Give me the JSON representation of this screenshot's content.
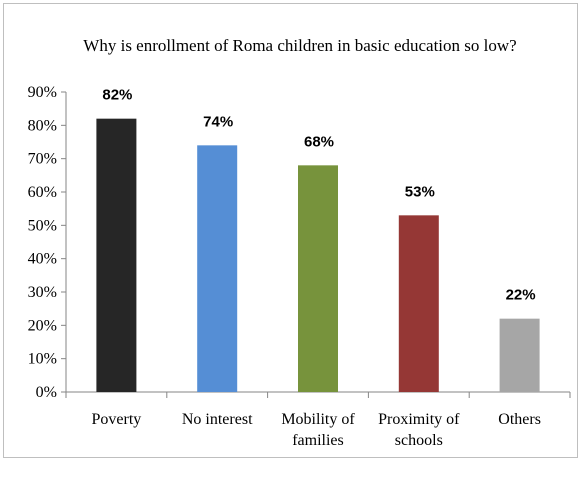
{
  "chart_data": {
    "type": "bar",
    "title": "Why is enrollment of Roma children in basic education so low?",
    "xlabel": "",
    "ylabel": "",
    "categories": [
      "Poverty",
      "No interest",
      "Mobility of families",
      "Proximity of schools",
      "Others"
    ],
    "category_lines": [
      [
        "Poverty"
      ],
      [
        "No interest"
      ],
      [
        "Mobility of",
        "families"
      ],
      [
        "Proximity of",
        "schools"
      ],
      [
        "Others"
      ]
    ],
    "values": [
      82,
      74,
      68,
      53,
      22
    ],
    "data_labels": [
      "82%",
      "74%",
      "68%",
      "53%",
      "22%"
    ],
    "colors": [
      "#262626",
      "#558ed5",
      "#77933c",
      "#953735",
      "#a6a6a6"
    ],
    "ylim": [
      0,
      90
    ],
    "yticks": [
      0,
      10,
      20,
      30,
      40,
      50,
      60,
      70,
      80,
      90
    ],
    "ytick_labels": [
      "0%",
      "10%",
      "20%",
      "30%",
      "40%",
      "50%",
      "60%",
      "70%",
      "80%",
      "90%"
    ],
    "grid": false,
    "legend": "none"
  }
}
